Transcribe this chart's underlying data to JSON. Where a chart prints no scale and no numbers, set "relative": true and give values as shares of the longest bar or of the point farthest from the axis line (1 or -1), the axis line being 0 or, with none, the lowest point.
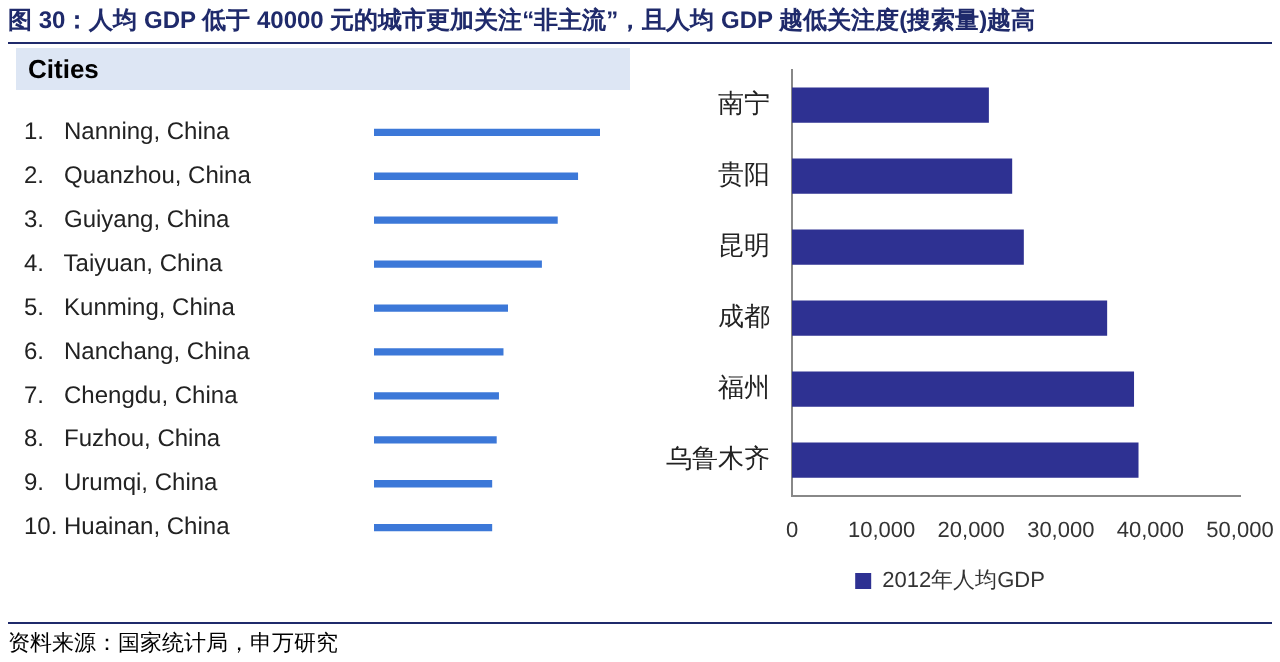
{
  "chart_data": [
    {
      "type": "bar",
      "orientation": "horizontal",
      "relative": true,
      "title": "图 30：人均 GDP 低于 40000 元的城市更加关注“非主流”，且人均 GDP 越低关注度(搜索量)越高",
      "ylabel": "Cities",
      "categories": [
        "1.   Nanning, China",
        "2.   Quanzhou, China",
        "3.   Guiyang, China",
        "4.   Taiyuan, China",
        "5.   Kunming, China",
        "6.   Nanchang, China",
        "7.   Chengdu, China",
        "8.   Fuzhou, China",
        "9.   Urumqi, China",
        "10. Huainan, China"
      ],
      "values": [
        1,
        0.9,
        0.81,
        0.74,
        0.59,
        0.57,
        0.55,
        0.54,
        0.52,
        0.52
      ],
      "color": "#3c78d8",
      "grid": false,
      "legend": false,
      "tick_labels": "y",
      "annotations": [
        "资料来源：国家统计局，申万研究"
      ]
    },
    {
      "type": "bar",
      "orientation": "horizontal",
      "categories": [
        "南宁",
        "贵阳",
        "昆明",
        "成都",
        "福州",
        "乌鲁木齐"
      ],
      "series": [
        {
          "name": "2012年人均GDP",
          "color": "#2e3192",
          "values": [
            21900,
            24500,
            25800,
            35100,
            38100,
            38600
          ]
        }
      ],
      "xlim": [
        0,
        50000
      ],
      "xticks": [
        0,
        {
          "value": 10000,
          "label": "10,000"
        },
        {
          "value": 20000,
          "label": "20,000"
        },
        {
          "value": 30000,
          "label": "30,000"
        },
        {
          "value": 40000,
          "label": "40,000"
        },
        {
          "value": 50000,
          "label": "50,000"
        }
      ],
      "grid": false,
      "legend": "bottom"
    }
  ]
}
